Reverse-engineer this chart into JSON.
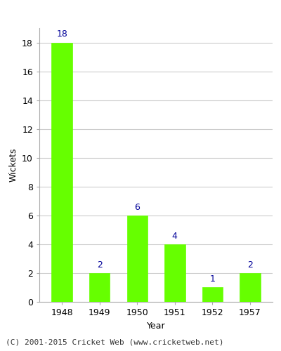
{
  "categories": [
    "1948",
    "1949",
    "1950",
    "1951",
    "1952",
    "1957"
  ],
  "values": [
    18,
    2,
    6,
    4,
    1,
    2
  ],
  "bar_color": "#66ff00",
  "bar_edge_color": "#66ff00",
  "title": "",
  "xlabel": "Year",
  "ylabel": "Wickets",
  "ylim": [
    0,
    19
  ],
  "yticks": [
    0,
    2,
    4,
    6,
    8,
    10,
    12,
    14,
    16,
    18
  ],
  "value_label_color": "#000099",
  "value_label_fontsize": 9,
  "axis_label_fontsize": 9,
  "tick_label_fontsize": 9,
  "footer_text": "(C) 2001-2015 Cricket Web (www.cricketweb.net)",
  "footer_fontsize": 8,
  "background_color": "#ffffff",
  "grid_color": "#cccccc",
  "bar_width": 0.55
}
